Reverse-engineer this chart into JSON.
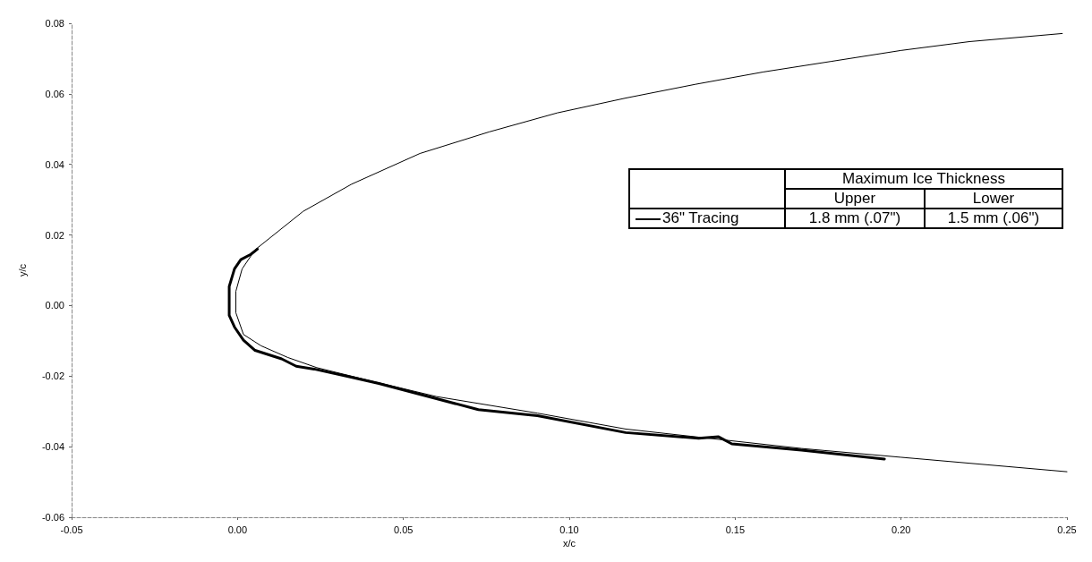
{
  "chart_data": {
    "type": "line",
    "xlabel": "x/c",
    "ylabel": "y/c",
    "xlim": [
      -0.05,
      0.25
    ],
    "xticks": [
      -0.05,
      {
        "value": 0,
        "label": "0.00"
      },
      0.05,
      {
        "value": 0.1,
        "label": "0.10"
      },
      0.15,
      {
        "value": 0.2,
        "label": "0.20"
      },
      0.25
    ],
    "ylim": [
      -0.06,
      0.08
    ],
    "yticks": [
      -0.06,
      -0.04,
      -0.02,
      {
        "value": 0,
        "label": "0.00"
      },
      0.02,
      0.04,
      0.06,
      0.08
    ],
    "grid": false,
    "legend": "right",
    "marker": "none",
    "annotations": [
      "Maximum Ice Thickness",
      "Upper",
      "Lower",
      "1.8 mm (.07\")",
      "1.5 mm (.06\")"
    ],
    "series": [
      {
        "color": "#000000",
        "x": [
          0.2486,
          0.2206,
          0.2,
          0.179,
          0.1585,
          0.138,
          0.117,
          0.0964,
          0.0758,
          0.055,
          0.0344,
          0.0198,
          0.0053,
          0.0014,
          -0.0005,
          -0.0005,
          0.0018,
          0.0071,
          0.0151,
          0.0239,
          0.0417,
          0.06,
          0.0904,
          0.117,
          0.139,
          0.17,
          0.2,
          0.25
        ],
        "values": [
          0.0771,
          0.0748,
          0.0723,
          0.0692,
          0.0662,
          0.0627,
          0.0588,
          0.0546,
          0.0492,
          0.0431,
          0.0344,
          0.0267,
          0.0158,
          0.0104,
          0.004,
          -0.002,
          -0.0082,
          -0.0114,
          -0.0147,
          -0.0176,
          -0.0217,
          -0.0258,
          -0.0305,
          -0.035,
          -0.0373,
          -0.0405,
          -0.043,
          -0.0471
        ]
      },
      {
        "name": "36\" Tracing",
        "color": "#000000",
        "x": [
          0.006,
          0.004,
          0.001,
          -0.0009,
          -0.0025,
          -0.0025,
          -0.0009,
          0.0018,
          0.0053,
          0.0133,
          0.0177,
          0.0231,
          0.0328,
          0.0426,
          0.0726,
          0.0904,
          0.117,
          0.139,
          0.145,
          0.149,
          0.17,
          0.18,
          0.195
        ],
        "values": [
          0.016,
          0.0145,
          0.013,
          0.0104,
          0.0054,
          -0.0028,
          -0.0061,
          -0.0098,
          -0.0127,
          -0.0151,
          -0.0172,
          -0.018,
          -0.02,
          -0.0221,
          -0.0295,
          -0.0312,
          -0.036,
          -0.0376,
          -0.0372,
          -0.0392,
          -0.041,
          -0.042,
          -0.0435
        ]
      }
    ]
  }
}
